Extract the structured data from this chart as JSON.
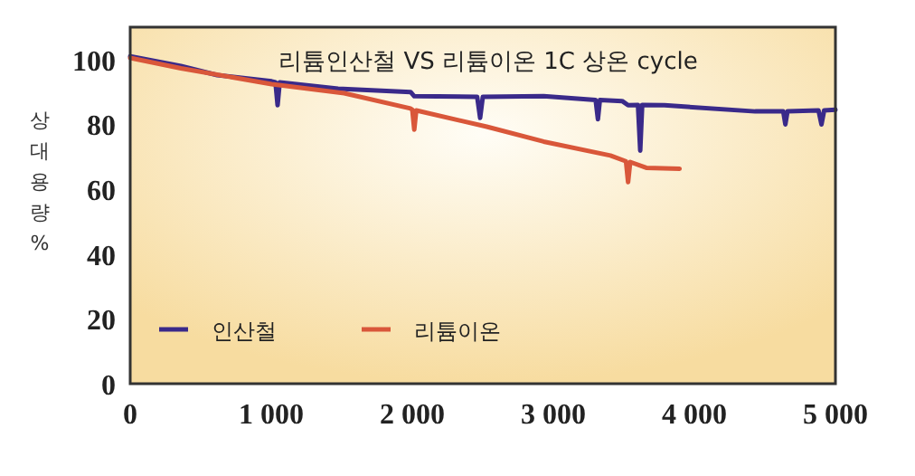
{
  "chart_data": {
    "type": "line",
    "title": "리튬인산철 VS 리튬이온 1C 상온 cycle",
    "ylabel": "상대용량%",
    "xlim": [
      0,
      5000
    ],
    "ylim": [
      0,
      110
    ],
    "xticks": [
      0,
      {
        "value": 1000,
        "label": "1 000"
      },
      {
        "value": 2000,
        "label": "2 000"
      },
      {
        "value": 3000,
        "label": "3 000"
      },
      {
        "value": 4000,
        "label": "4 000"
      },
      {
        "value": 5000,
        "label": "5 000"
      }
    ],
    "yticks": [
      0,
      20,
      40,
      60,
      80,
      100
    ],
    "grid": false,
    "legend": "bottom left",
    "line_style": "solid",
    "marker": "none",
    "series": [
      {
        "name": "인산철",
        "color": "#3a2a8a",
        "x": [
          0,
          360,
          617,
          1003,
          1030,
          1045,
          1060,
          1474,
          1988,
          2014,
          2460,
          2481,
          2500,
          2931,
          3300,
          3316,
          3330,
          3488,
          3530,
          3600,
          3616,
          3630,
          3788,
          4431,
          4630,
          4645,
          4660,
          4880,
          4901,
          4920,
          5000
        ],
        "values": [
          101,
          98,
          95.2,
          93.3,
          93,
          85.9,
          93,
          91,
          90,
          88.7,
          88.5,
          82,
          88.5,
          88.7,
          87.5,
          81.6,
          87.5,
          87.2,
          85.9,
          86,
          71.9,
          86,
          85.9,
          84,
          84,
          80,
          84,
          84.3,
          80,
          84.3,
          84.5
        ]
      },
      {
        "name": "리튬이온",
        "color": "#d9573a",
        "x": [
          0,
          360,
          1003,
          1517,
          1988,
          2000,
          2014,
          2028,
          2528,
          2931,
          3405,
          3515,
          3530,
          3545,
          3659,
          3895
        ],
        "values": [
          100.5,
          97.3,
          92.4,
          89.6,
          84.9,
          84.5,
          78.4,
          84.3,
          79.3,
          74.7,
          70.4,
          68.6,
          62.2,
          68.4,
          66.6,
          66.3
        ]
      }
    ]
  }
}
